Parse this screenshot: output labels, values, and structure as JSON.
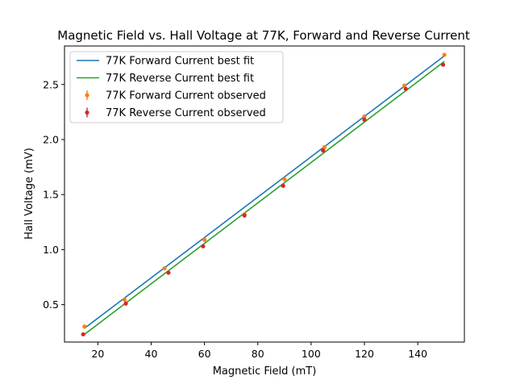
{
  "chart_data": {
    "type": "line",
    "title": "Magnetic Field vs. Hall Voltage at 77K, Forward and Reverse Current",
    "xlabel": "Magnetic Field (mT)",
    "ylabel": "Hall Voltage (mV)",
    "xlim": [
      7.5,
      157.5
    ],
    "ylim": [
      0.16,
      2.85
    ],
    "xticks": [
      20,
      40,
      60,
      80,
      100,
      120,
      140
    ],
    "yticks": [
      0.5,
      1.0,
      1.5,
      2.0,
      2.5
    ],
    "xtick_labels": [
      "20",
      "40",
      "60",
      "80",
      "100",
      "120",
      "140"
    ],
    "ytick_labels": [
      "0.5",
      "1.0",
      "1.5",
      "2.0",
      "2.5"
    ],
    "grid": false,
    "legend_position": "top-left",
    "series": [
      {
        "name": "77K Forward Current best fit",
        "kind": "line",
        "color": "#1f77b4",
        "x": [
          15,
          150
        ],
        "y": [
          0.285,
          2.76
        ]
      },
      {
        "name": "77K Reverse Current best fit",
        "kind": "line",
        "color": "#2ca02c",
        "x": [
          15,
          150
        ],
        "y": [
          0.23,
          2.71
        ]
      },
      {
        "name": "77K Forward Current observed",
        "kind": "scatter",
        "color": "#ff7f0e",
        "x": [
          15,
          30,
          45,
          60,
          75,
          90,
          105,
          120,
          135,
          150
        ],
        "y": [
          0.3,
          0.545,
          0.83,
          1.09,
          1.32,
          1.64,
          1.93,
          2.21,
          2.49,
          2.77
        ]
      },
      {
        "name": "77K Reverse Current observed",
        "kind": "scatter",
        "color": "#d62728",
        "x": [
          14.5,
          30.5,
          46.5,
          59.5,
          75,
          89.5,
          104.5,
          120,
          135.5,
          149.5
        ],
        "y": [
          0.23,
          0.51,
          0.79,
          1.03,
          1.31,
          1.58,
          1.9,
          2.18,
          2.46,
          2.68
        ]
      }
    ]
  }
}
